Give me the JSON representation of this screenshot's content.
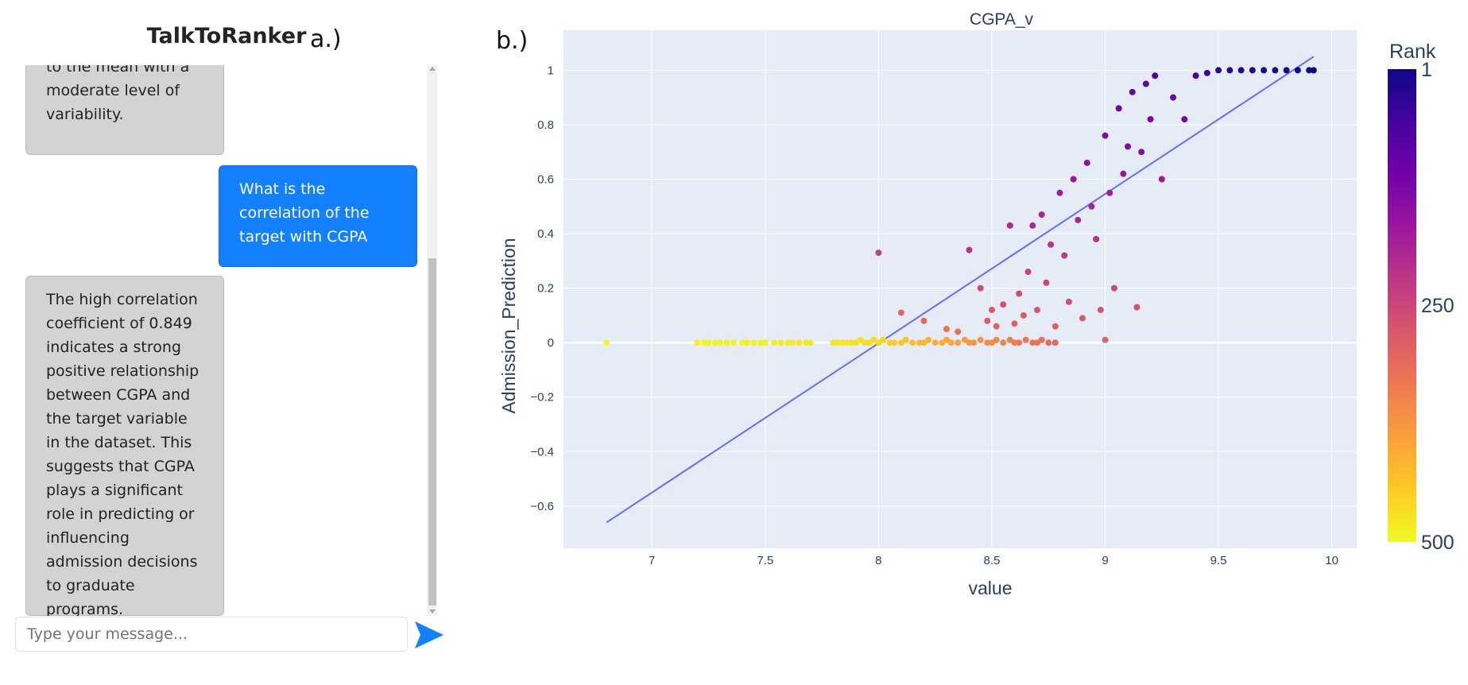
{
  "app": {
    "title": "TalkToRanker",
    "panel_a_label": "a.)",
    "panel_b_label": "b.)"
  },
  "chat": {
    "messages": [
      {
        "role": "bot",
        "text": "to the mean with a moderate level of variability."
      },
      {
        "role": "user",
        "text": "What is the correlation of the target with CGPA"
      },
      {
        "role": "bot",
        "text": "The high correlation coefficient of 0.849 indicates a strong positive relationship between CGPA and the target variable in the dataset. This suggests that CGPA plays a significant role in predicting or influencing admission decisions to graduate programs."
      }
    ],
    "input": {
      "value": "",
      "placeholder": "Type your message..."
    },
    "send_icon": "send-arrow-icon",
    "colors": {
      "user_bubble": "#1380ff",
      "bot_bubble": "#d3d3d3"
    }
  },
  "chart_data": {
    "type": "scatter",
    "title": "CGPA_v",
    "xlabel": "value",
    "ylabel": "Admission_Prediction",
    "xlim": [
      6.61,
      10.11
    ],
    "ylim": [
      -0.755,
      1.147
    ],
    "xticks": [
      7,
      7.5,
      8,
      8.5,
      9,
      9.5,
      10
    ],
    "yticks": [
      1,
      0.8,
      0.6,
      0.4,
      0.2,
      0,
      -0.2,
      -0.4,
      -0.6
    ],
    "ytick_labels": [
      "1",
      "0.8",
      "0.6",
      "0.4",
      "0.2",
      "0",
      "−0.2",
      "−0.4",
      "−0.6"
    ],
    "grid": true,
    "plot_bgcolor": "#e5ecf6",
    "colorbar": {
      "title": "Rank",
      "ticks": [
        1,
        250,
        500
      ],
      "range": [
        1,
        500
      ],
      "colorscale": [
        "#0d0887",
        "#46039f",
        "#7201a8",
        "#9c179e",
        "#bd3786",
        "#d8576b",
        "#ed7953",
        "#fb9f3a",
        "#fdca26",
        "#f0f921"
      ]
    },
    "trend_line": {
      "x": [
        6.8,
        9.92
      ],
      "y": [
        -0.66,
        1.05
      ],
      "color": "#636efa"
    },
    "points": [
      [
        6.8,
        0,
        500
      ],
      [
        7.2,
        0,
        499
      ],
      [
        7.23,
        0,
        498
      ],
      [
        7.25,
        0,
        497
      ],
      [
        7.28,
        0,
        496
      ],
      [
        7.3,
        0,
        495
      ],
      [
        7.33,
        0,
        494
      ],
      [
        7.36,
        0,
        493
      ],
      [
        7.4,
        0,
        492
      ],
      [
        7.42,
        0,
        491
      ],
      [
        7.45,
        0,
        490
      ],
      [
        7.48,
        0,
        489
      ],
      [
        7.5,
        0,
        488
      ],
      [
        7.54,
        0,
        487
      ],
      [
        7.57,
        0,
        486
      ],
      [
        7.6,
        0,
        485
      ],
      [
        7.62,
        0,
        484
      ],
      [
        7.65,
        0,
        483
      ],
      [
        7.68,
        0,
        482
      ],
      [
        7.7,
        0,
        481
      ],
      [
        7.8,
        0,
        480
      ],
      [
        7.82,
        0,
        479
      ],
      [
        7.84,
        0,
        478
      ],
      [
        7.86,
        0,
        477
      ],
      [
        7.88,
        0,
        476
      ],
      [
        7.9,
        0,
        475
      ],
      [
        7.92,
        0.01,
        470
      ],
      [
        7.94,
        0,
        468
      ],
      [
        7.96,
        0,
        466
      ],
      [
        7.98,
        0.01,
        464
      ],
      [
        8.0,
        0,
        460
      ],
      [
        8.02,
        0.01,
        455
      ],
      [
        8.05,
        0,
        450
      ],
      [
        8.07,
        0,
        445
      ],
      [
        8.1,
        0,
        440
      ],
      [
        8.12,
        0.01,
        435
      ],
      [
        8.15,
        0,
        430
      ],
      [
        8.18,
        0,
        425
      ],
      [
        8.2,
        0,
        420
      ],
      [
        8.22,
        0.01,
        415
      ],
      [
        8.25,
        0,
        410
      ],
      [
        8.28,
        0,
        405
      ],
      [
        8.3,
        0.01,
        400
      ],
      [
        8.32,
        0,
        395
      ],
      [
        8.35,
        0,
        390
      ],
      [
        8.38,
        0.01,
        385
      ],
      [
        8.4,
        0,
        380
      ],
      [
        8.42,
        0,
        375
      ],
      [
        8.45,
        0.01,
        370
      ],
      [
        8.48,
        0,
        365
      ],
      [
        8.5,
        0,
        360
      ],
      [
        8.52,
        0.01,
        355
      ],
      [
        8.55,
        0,
        350
      ],
      [
        8.58,
        0.01,
        345
      ],
      [
        8.6,
        0,
        340
      ],
      [
        8.62,
        0,
        335
      ],
      [
        8.65,
        0.01,
        330
      ],
      [
        8.68,
        0,
        325
      ],
      [
        8.7,
        0,
        320
      ],
      [
        8.72,
        0.01,
        315
      ],
      [
        8.75,
        0,
        310
      ],
      [
        8.78,
        0,
        305
      ],
      [
        9.0,
        0.01,
        300
      ],
      [
        8.0,
        0.33,
        240
      ],
      [
        8.1,
        0.11,
        300
      ],
      [
        8.2,
        0.08,
        310
      ],
      [
        8.3,
        0.05,
        320
      ],
      [
        8.35,
        0.04,
        318
      ],
      [
        8.4,
        0.34,
        220
      ],
      [
        8.45,
        0.2,
        260
      ],
      [
        8.48,
        0.08,
        290
      ],
      [
        8.5,
        0.12,
        280
      ],
      [
        8.52,
        0.06,
        300
      ],
      [
        8.55,
        0.14,
        270
      ],
      [
        8.58,
        0.43,
        200
      ],
      [
        8.6,
        0.07,
        295
      ],
      [
        8.62,
        0.18,
        260
      ],
      [
        8.64,
        0.1,
        285
      ],
      [
        8.66,
        0.26,
        240
      ],
      [
        8.68,
        0.43,
        200
      ],
      [
        8.7,
        0.12,
        275
      ],
      [
        8.72,
        0.47,
        190
      ],
      [
        8.74,
        0.22,
        250
      ],
      [
        8.76,
        0.36,
        215
      ],
      [
        8.78,
        0.06,
        290
      ],
      [
        8.8,
        0.55,
        175
      ],
      [
        8.82,
        0.32,
        225
      ],
      [
        8.84,
        0.15,
        265
      ],
      [
        8.86,
        0.6,
        165
      ],
      [
        8.88,
        0.45,
        195
      ],
      [
        8.9,
        0.09,
        280
      ],
      [
        8.92,
        0.66,
        155
      ],
      [
        8.94,
        0.5,
        185
      ],
      [
        8.96,
        0.38,
        210
      ],
      [
        8.98,
        0.12,
        275
      ],
      [
        9.0,
        0.76,
        130
      ],
      [
        9.02,
        0.55,
        175
      ],
      [
        9.04,
        0.2,
        255
      ],
      [
        9.06,
        0.86,
        110
      ],
      [
        9.08,
        0.62,
        160
      ],
      [
        9.1,
        0.72,
        140
      ],
      [
        9.12,
        0.92,
        95
      ],
      [
        9.14,
        0.13,
        270
      ],
      [
        9.16,
        0.7,
        145
      ],
      [
        9.18,
        0.95,
        85
      ],
      [
        9.2,
        0.82,
        120
      ],
      [
        9.22,
        0.98,
        70
      ],
      [
        9.25,
        0.6,
        165
      ],
      [
        9.3,
        0.9,
        100
      ],
      [
        9.35,
        0.82,
        118
      ],
      [
        9.4,
        0.98,
        60
      ],
      [
        9.45,
        0.99,
        45
      ],
      [
        9.5,
        1.0,
        35
      ],
      [
        9.55,
        1.0,
        28
      ],
      [
        9.6,
        1.0,
        22
      ],
      [
        9.65,
        1.0,
        17
      ],
      [
        9.7,
        1.0,
        13
      ],
      [
        9.75,
        1.0,
        10
      ],
      [
        9.8,
        1.0,
        7
      ],
      [
        9.85,
        1.0,
        5
      ],
      [
        9.9,
        1.0,
        2
      ],
      [
        9.92,
        1.0,
        1
      ]
    ]
  }
}
